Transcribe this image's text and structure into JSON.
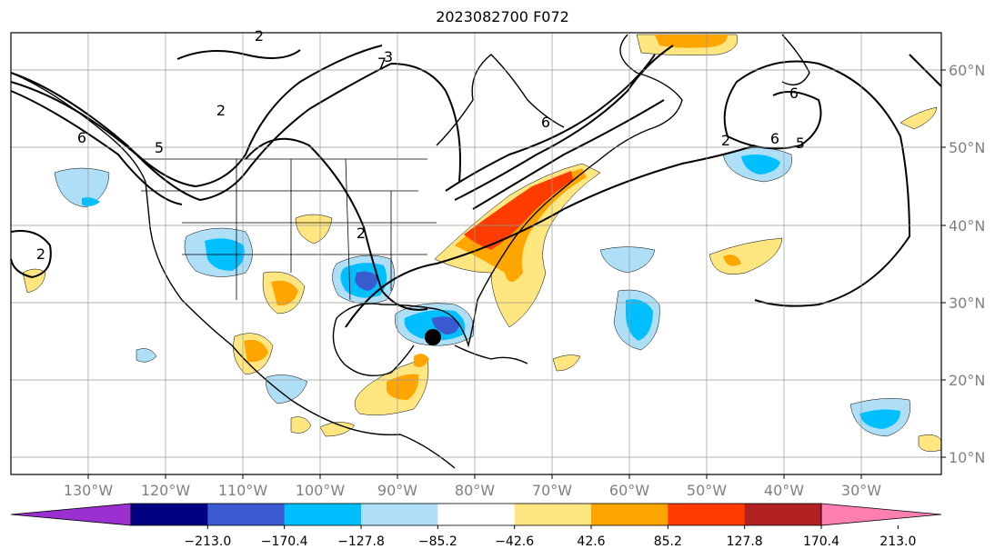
{
  "title": "2023082700 F072",
  "lon_ticks": [
    "130°W",
    "120°W",
    "110°W",
    "100°W",
    "90°W",
    "80°W",
    "70°W",
    "60°W",
    "50°W",
    "40°W",
    "30°W"
  ],
  "lat_ticks": [
    "60°N",
    "50°N",
    "40°N",
    "30°N",
    "20°N",
    "10°N"
  ],
  "contour_labels": [
    "2",
    "6",
    "5",
    "3",
    "2",
    "6",
    "2",
    "6",
    "6",
    "5",
    "2",
    "2",
    "7"
  ],
  "colorbar": {
    "ticks": [
      "−213.0",
      "−170.4",
      "−127.8",
      "−85.2",
      "−42.6",
      "42.6",
      "85.2",
      "127.8",
      "170.4",
      "213.0"
    ],
    "colors": [
      "#9b30d0",
      "#000080",
      "#3a5bd0",
      "#00bfff",
      "#aedff7",
      "#ffffff",
      "#ffe680",
      "#ffa500",
      "#ff3c00",
      "#b22222",
      "#ff80b0"
    ]
  },
  "storm_marker": "black-dot"
}
